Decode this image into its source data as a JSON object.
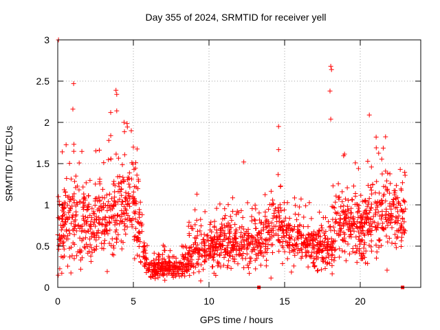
{
  "chart_data": {
    "type": "scatter",
    "title": "Day 355 of 2024, SRMTID for receiver yell",
    "xlabel": "GPS time / hours",
    "ylabel": "SRMTID / TECUs",
    "xlim": [
      0,
      24
    ],
    "ylim": [
      0,
      3
    ],
    "xticks": [
      {
        "value": 0,
        "label": "0"
      },
      {
        "value": 5,
        "label": "5"
      },
      {
        "value": 10,
        "label": "10"
      },
      {
        "value": 15,
        "label": "15"
      },
      {
        "value": 20,
        "label": "20"
      }
    ],
    "yticks": [
      {
        "value": 0,
        "label": "0"
      },
      {
        "value": 0.5,
        "label": "0.5"
      },
      {
        "value": 1,
        "label": "1"
      },
      {
        "value": 1.5,
        "label": "1.5"
      },
      {
        "value": 2,
        "label": "2"
      },
      {
        "value": 2.5,
        "label": "2.5"
      },
      {
        "value": 3,
        "label": "3"
      }
    ],
    "grid": true,
    "marker": "+",
    "series_color": "#ff0000",
    "series": [
      {
        "name": "SRMTID",
        "profile": [
          {
            "x": 0.0,
            "center": 0.65,
            "spread": 0.45
          },
          {
            "x": 1.0,
            "center": 0.85,
            "spread": 0.45
          },
          {
            "x": 2.0,
            "center": 0.75,
            "spread": 0.4
          },
          {
            "x": 3.0,
            "center": 0.8,
            "spread": 0.4
          },
          {
            "x": 4.0,
            "center": 0.95,
            "spread": 0.5
          },
          {
            "x": 5.0,
            "center": 1.0,
            "spread": 0.45
          },
          {
            "x": 5.6,
            "center": 0.6,
            "spread": 0.3
          },
          {
            "x": 6.0,
            "center": 0.22,
            "spread": 0.1
          },
          {
            "x": 7.0,
            "center": 0.25,
            "spread": 0.12
          },
          {
            "x": 8.0,
            "center": 0.22,
            "spread": 0.1
          },
          {
            "x": 9.0,
            "center": 0.45,
            "spread": 0.25
          },
          {
            "x": 10.0,
            "center": 0.45,
            "spread": 0.25
          },
          {
            "x": 11.0,
            "center": 0.55,
            "spread": 0.25
          },
          {
            "x": 12.0,
            "center": 0.55,
            "spread": 0.25
          },
          {
            "x": 13.0,
            "center": 0.5,
            "spread": 0.25
          },
          {
            "x": 14.0,
            "center": 0.7,
            "spread": 0.35
          },
          {
            "x": 15.0,
            "center": 0.7,
            "spread": 0.35
          },
          {
            "x": 16.0,
            "center": 0.6,
            "spread": 0.25
          },
          {
            "x": 17.0,
            "center": 0.5,
            "spread": 0.25
          },
          {
            "x": 18.0,
            "center": 0.45,
            "spread": 0.2
          },
          {
            "x": 18.5,
            "center": 0.8,
            "spread": 0.45
          },
          {
            "x": 19.0,
            "center": 0.75,
            "spread": 0.4
          },
          {
            "x": 20.0,
            "center": 0.7,
            "spread": 0.35
          },
          {
            "x": 21.0,
            "center": 0.85,
            "spread": 0.45
          },
          {
            "x": 22.0,
            "center": 0.9,
            "spread": 0.45
          },
          {
            "x": 23.0,
            "center": 0.85,
            "spread": 0.35
          }
        ],
        "points_per_hour": 85,
        "x_range": [
          0,
          23
        ],
        "outliers": [
          {
            "x": 0.05,
            "y": 3.0
          },
          {
            "x": 1.05,
            "y": 2.47
          },
          {
            "x": 1.0,
            "y": 2.16
          },
          {
            "x": 3.85,
            "y": 2.39
          },
          {
            "x": 3.9,
            "y": 2.34
          },
          {
            "x": 3.5,
            "y": 2.12
          },
          {
            "x": 3.9,
            "y": 2.14
          },
          {
            "x": 18.05,
            "y": 2.68
          },
          {
            "x": 18.1,
            "y": 2.64
          },
          {
            "x": 18.0,
            "y": 2.38
          },
          {
            "x": 18.05,
            "y": 2.04
          },
          {
            "x": 20.6,
            "y": 2.09
          },
          {
            "x": 14.6,
            "y": 1.95
          },
          {
            "x": 14.6,
            "y": 1.67
          },
          {
            "x": 12.3,
            "y": 1.52
          },
          {
            "x": 9.2,
            "y": 1.13
          }
        ],
        "zero_markers": [
          13.3,
          22.8
        ]
      }
    ]
  }
}
